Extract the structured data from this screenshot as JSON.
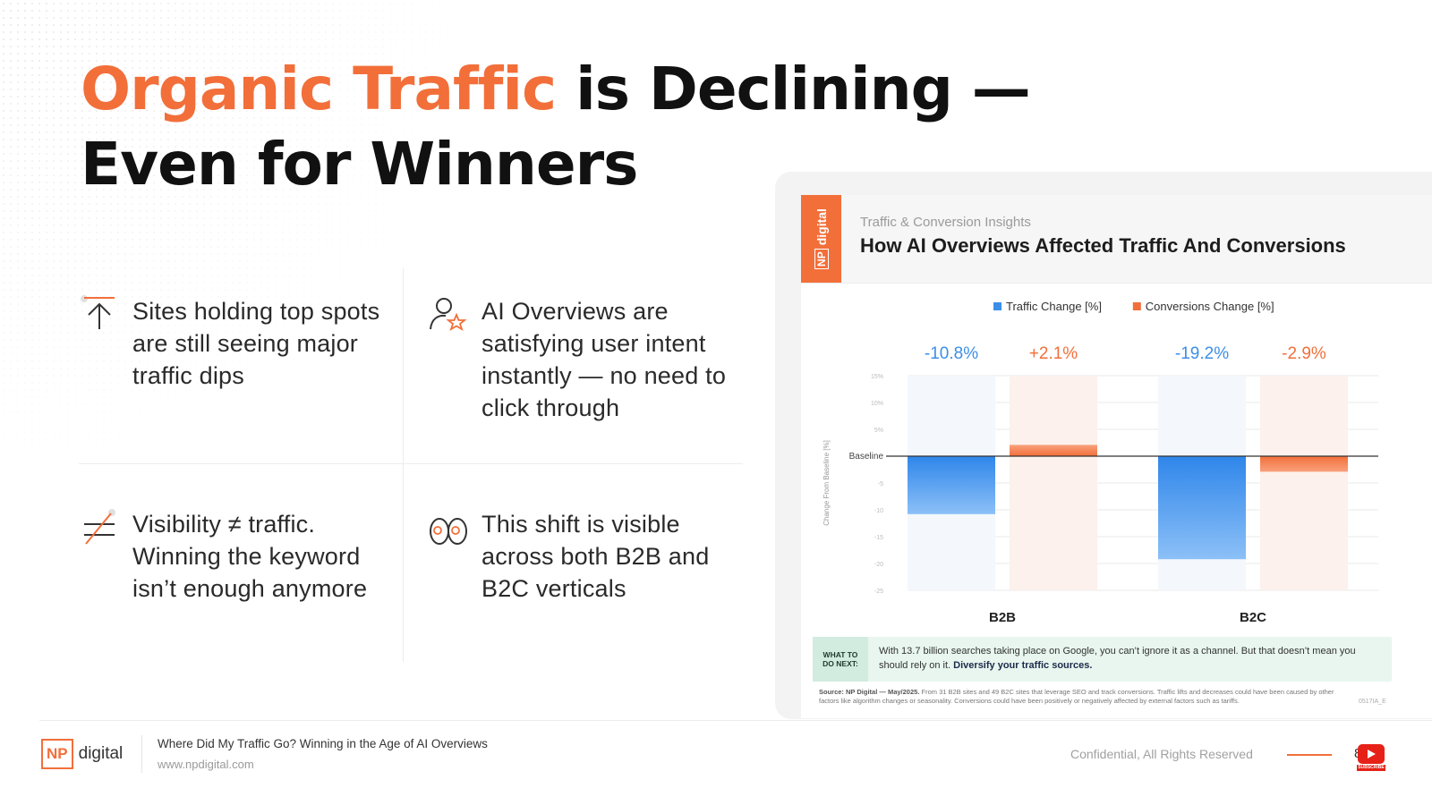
{
  "slide": {
    "headline_accent": "Organic Traffic",
    "headline_rest": " is Declining —",
    "headline_line2": "Even for Winners"
  },
  "features": [
    {
      "icon": "arrow-up-icon",
      "text": "Sites holding top spots are still seeing major traffic dips"
    },
    {
      "icon": "user-star-icon",
      "text": "AI Overviews are satisfying user intent instantly — no need to click through"
    },
    {
      "icon": "not-equal-icon",
      "text": "Visibility ≠ traffic. Winning the keyword isn’t enough anymore"
    },
    {
      "icon": "binoculars-icon",
      "text": "This shift is visible across both B2B and B2C verticals"
    }
  ],
  "card": {
    "brand_np": "NP",
    "brand_word": "digital",
    "subtitle": "Traffic & Conversion Insights",
    "title": "How AI Overviews Affected Traffic And Conversions",
    "what_next_label_1": "WHAT TO",
    "what_next_label_2": "DO NEXT:",
    "what_next_text": "With 13.7 billion searches taking place on Google, you can’t ignore it as a channel. But that doesn’t mean you should rely on it.",
    "what_next_bold": "Diversify your traffic sources.",
    "source_bold": "Source: NP Digital — May/2025.",
    "source_text": "From 31 B2B sites and 49 B2C sites that leverage SEO and track conversions. Traffic lifts and decreases could have been caused by other factors like algorithm changes or seasonality. Conversions could have been positively or negatively affected by external factors such as tariffs.",
    "page_code": "0517IA_E"
  },
  "chart_data": {
    "type": "bar",
    "categories": [
      "B2B",
      "B2C"
    ],
    "series": [
      {
        "name": "Traffic Change [%]",
        "values": [
          -10.8,
          -19.2
        ],
        "color": "#3d8ee8"
      },
      {
        "name": "Conversions Change [%]",
        "values": [
          2.1,
          -2.9
        ],
        "color": "#f26f3a"
      }
    ],
    "data_labels": [
      [
        "-10.8%",
        "+2.1%"
      ],
      [
        "-19.2%",
        "-2.9%"
      ]
    ],
    "ylabel": "Change From Baseline [%]",
    "yticks": [
      15,
      10,
      5,
      0,
      -5,
      -10,
      -15,
      -20,
      -25
    ],
    "ytick_labels": [
      "15%",
      "10%",
      "5%",
      "Baseline",
      "-5",
      "-10",
      "-15",
      "-20",
      "-25"
    ],
    "ylim": [
      -25,
      15
    ],
    "legend_position": "top-center",
    "grid": true
  },
  "footer": {
    "logo_np": "NP",
    "logo_word": "digital",
    "title": "Where Did My Traffic Go? Winning in the Age of AI Overviews",
    "url": "www.npdigital.com",
    "confidential": "Confidential, All Rights Reserved",
    "page": "8",
    "subscribe": "SUBSCRIBE"
  }
}
